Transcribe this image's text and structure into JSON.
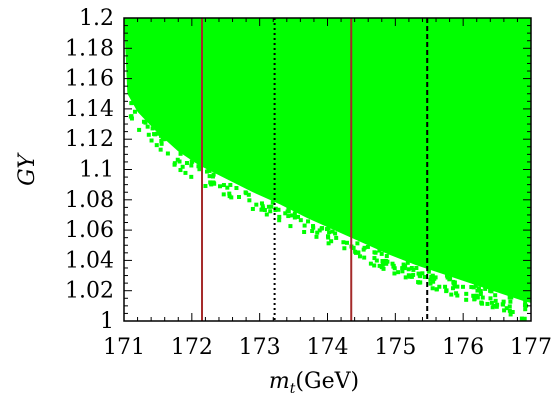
{
  "chart_data": {
    "type": "scatter",
    "title": "",
    "xlabel": "m_t(GeV)",
    "ylabel": "GY",
    "xlim": [
      171,
      177
    ],
    "ylim": [
      1.0,
      1.2
    ],
    "x_ticks": [
      "171",
      "172",
      "173",
      "174",
      "175",
      "176",
      "177"
    ],
    "y_ticks": [
      "1",
      "1.02",
      "1.04",
      "1.06",
      "1.08",
      "1.1",
      "1.12",
      "1.14",
      "1.16",
      "1.18",
      "1.2"
    ],
    "grid": false,
    "legend": "none",
    "region_color": "#00ff00",
    "region_lower_boundary": {
      "x": [
        171.0,
        171.05,
        171.2,
        171.5,
        171.8,
        172.1,
        172.5,
        172.9,
        173.3,
        173.7,
        174.1,
        174.5,
        174.9,
        175.3,
        175.7,
        176.1,
        176.5,
        176.9,
        177.0
      ],
      "y": [
        1.2,
        1.15,
        1.138,
        1.124,
        1.112,
        1.103,
        1.094,
        1.085,
        1.077,
        1.068,
        1.06,
        1.052,
        1.044,
        1.037,
        1.031,
        1.025,
        1.019,
        1.013,
        1.012
      ]
    },
    "vertical_lines": [
      {
        "x": 172.15,
        "style": "solid",
        "color": "#a52a2a"
      },
      {
        "x": 173.22,
        "style": "dotted",
        "color": "#000000"
      },
      {
        "x": 174.35,
        "style": "solid",
        "color": "#a52a2a"
      },
      {
        "x": 175.47,
        "style": "dashed",
        "color": "#000000"
      }
    ]
  }
}
